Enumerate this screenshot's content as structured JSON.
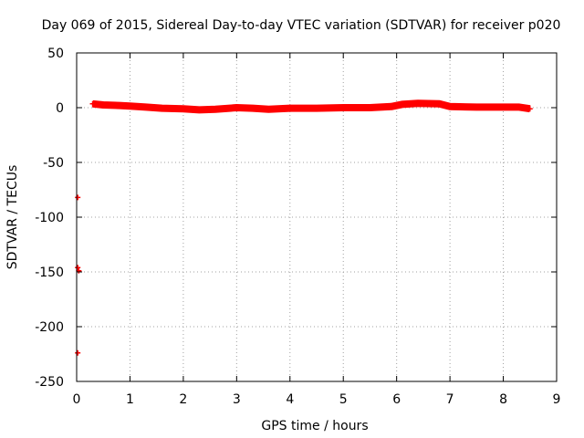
{
  "chart_data": {
    "type": "scatter",
    "title": "Day 069 of 2015, Sidereal Day-to-day VTEC variation (SDTVAR) for receiver p020",
    "xlabel": "GPS time / hours",
    "ylabel": "SDTVAR / TECUs",
    "xlim": [
      0,
      9
    ],
    "ylim": [
      -250,
      50
    ],
    "xticks": [
      0,
      1,
      2,
      3,
      4,
      5,
      6,
      7,
      8,
      9
    ],
    "yticks": [
      50,
      0,
      -50,
      -100,
      -150,
      -200,
      -250
    ],
    "grid": true,
    "marker": "+",
    "series_color": "#ff0000",
    "series": [
      {
        "name": "SDTVAR",
        "outliers": [
          {
            "x": 0.02,
            "y": -82
          },
          {
            "x": 0.02,
            "y": -146
          },
          {
            "x": 0.04,
            "y": -149
          },
          {
            "x": 0.02,
            "y": -224
          }
        ],
        "band": [
          {
            "x": 0.3,
            "y": 3.5
          },
          {
            "x": 0.5,
            "y": 2.5
          },
          {
            "x": 0.8,
            "y": 2.0
          },
          {
            "x": 1.0,
            "y": 1.5
          },
          {
            "x": 1.3,
            "y": 0.5
          },
          {
            "x": 1.6,
            "y": -0.5
          },
          {
            "x": 2.0,
            "y": -1.0
          },
          {
            "x": 2.3,
            "y": -2.0
          },
          {
            "x": 2.6,
            "y": -1.5
          },
          {
            "x": 3.0,
            "y": 0.0
          },
          {
            "x": 3.3,
            "y": -0.5
          },
          {
            "x": 3.6,
            "y": -1.5
          },
          {
            "x": 4.0,
            "y": -0.5
          },
          {
            "x": 4.5,
            "y": -0.5
          },
          {
            "x": 5.0,
            "y": 0.0
          },
          {
            "x": 5.5,
            "y": 0.0
          },
          {
            "x": 5.9,
            "y": 1.0
          },
          {
            "x": 6.1,
            "y": 3.0
          },
          {
            "x": 6.4,
            "y": 4.0
          },
          {
            "x": 6.8,
            "y": 3.5
          },
          {
            "x": 7.0,
            "y": 1.0
          },
          {
            "x": 7.5,
            "y": 0.5
          },
          {
            "x": 8.0,
            "y": 0.5
          },
          {
            "x": 8.3,
            "y": 0.5
          },
          {
            "x": 8.5,
            "y": -1.0
          }
        ]
      }
    ]
  }
}
